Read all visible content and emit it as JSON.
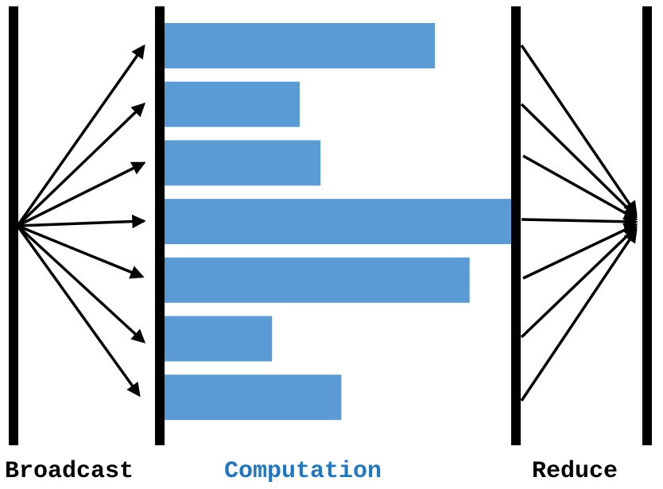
{
  "labels": {
    "broadcast": "Broadcast",
    "computation": "Computation",
    "reduce": "Reduce"
  },
  "colors": {
    "bar": "#5b9bd5",
    "barrier": "#000000",
    "arrow": "#000000",
    "computation_label": "#1f77c4"
  },
  "computation_bars": [
    {
      "worker": 1,
      "relative_duration": 0.78
    },
    {
      "worker": 2,
      "relative_duration": 0.39
    },
    {
      "worker": 3,
      "relative_duration": 0.45
    },
    {
      "worker": 4,
      "relative_duration": 1.0
    },
    {
      "worker": 5,
      "relative_duration": 0.88
    },
    {
      "worker": 6,
      "relative_duration": 0.31
    },
    {
      "worker": 7,
      "relative_duration": 0.51
    }
  ],
  "broadcast_arrow_count": 7,
  "reduce_arrow_count": 7
}
